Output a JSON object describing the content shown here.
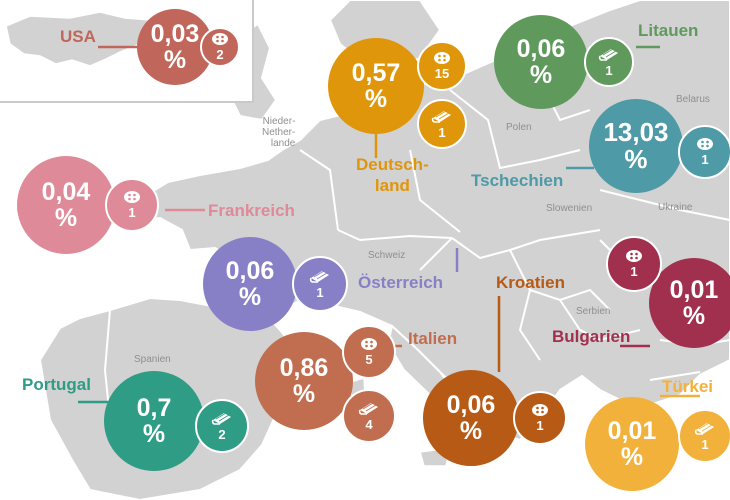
{
  "regions": {
    "niederlande": "Nieder-\nNether-\nlande",
    "polen": "Polen",
    "belarus": "Belarus",
    "slowenien": "Slowenien",
    "ukraine": "Ukraine",
    "schweiz": "Schweiz",
    "serbien": "Serbien",
    "spanien": "Spanien"
  },
  "countries": [
    {
      "key": "usa",
      "name": "USA",
      "pct": "0,03",
      "unit": "%",
      "icon": "button-icon",
      "count": "2",
      "color": "#c0665a"
    },
    {
      "key": "litauen",
      "name": "Litauen",
      "pct": "0,06",
      "unit": "%",
      "icon": "fabric-icon",
      "count": "1",
      "color": "#5f9a5c"
    },
    {
      "key": "deutschland",
      "name": "Deutsch-\nland",
      "pct": "0,57",
      "unit": "%",
      "icon": "button-icon",
      "count": "15",
      "icon2": "fabric-icon",
      "count2": "1",
      "color": "#e0960a"
    },
    {
      "key": "tschechien",
      "name": "Tschechien",
      "pct": "13,03",
      "unit": "%",
      "icon": "button-icon",
      "count": "1",
      "color": "#4e9aa6"
    },
    {
      "key": "frankreich",
      "name": "Frankreich",
      "pct": "0,04",
      "unit": "%",
      "icon": "button-icon",
      "count": "1",
      "color": "#de8a98"
    },
    {
      "key": "oesterreich",
      "name": "Österreich",
      "pct": "0,06",
      "unit": "%",
      "icon": "fabric-icon",
      "count": "1",
      "color": "#8880c6"
    },
    {
      "key": "kroatien",
      "name": "Kroatien",
      "pct": "0,06",
      "unit": "%",
      "icon": "button-icon",
      "count": "1",
      "color": "#b75a15"
    },
    {
      "key": "bulgarien",
      "name": "Bulgarien",
      "pct": "0,01",
      "unit": "%",
      "icon": "button-icon",
      "count": "1",
      "color": "#a0304e"
    },
    {
      "key": "italien",
      "name": "Italien",
      "pct": "0,86",
      "unit": "%",
      "icon": "button-icon",
      "count": "5",
      "icon2": "fabric-icon",
      "count2": "4",
      "color": "#c06e4f"
    },
    {
      "key": "portugal",
      "name": "Portugal",
      "pct": "0,7",
      "unit": "%",
      "icon": "fabric-icon",
      "count": "2",
      "color": "#2f9c86"
    },
    {
      "key": "tuerkei",
      "name": "Türkei",
      "pct": "0,01",
      "unit": "%",
      "icon": "fabric-icon",
      "count": "1",
      "color": "#f2b13a"
    }
  ]
}
